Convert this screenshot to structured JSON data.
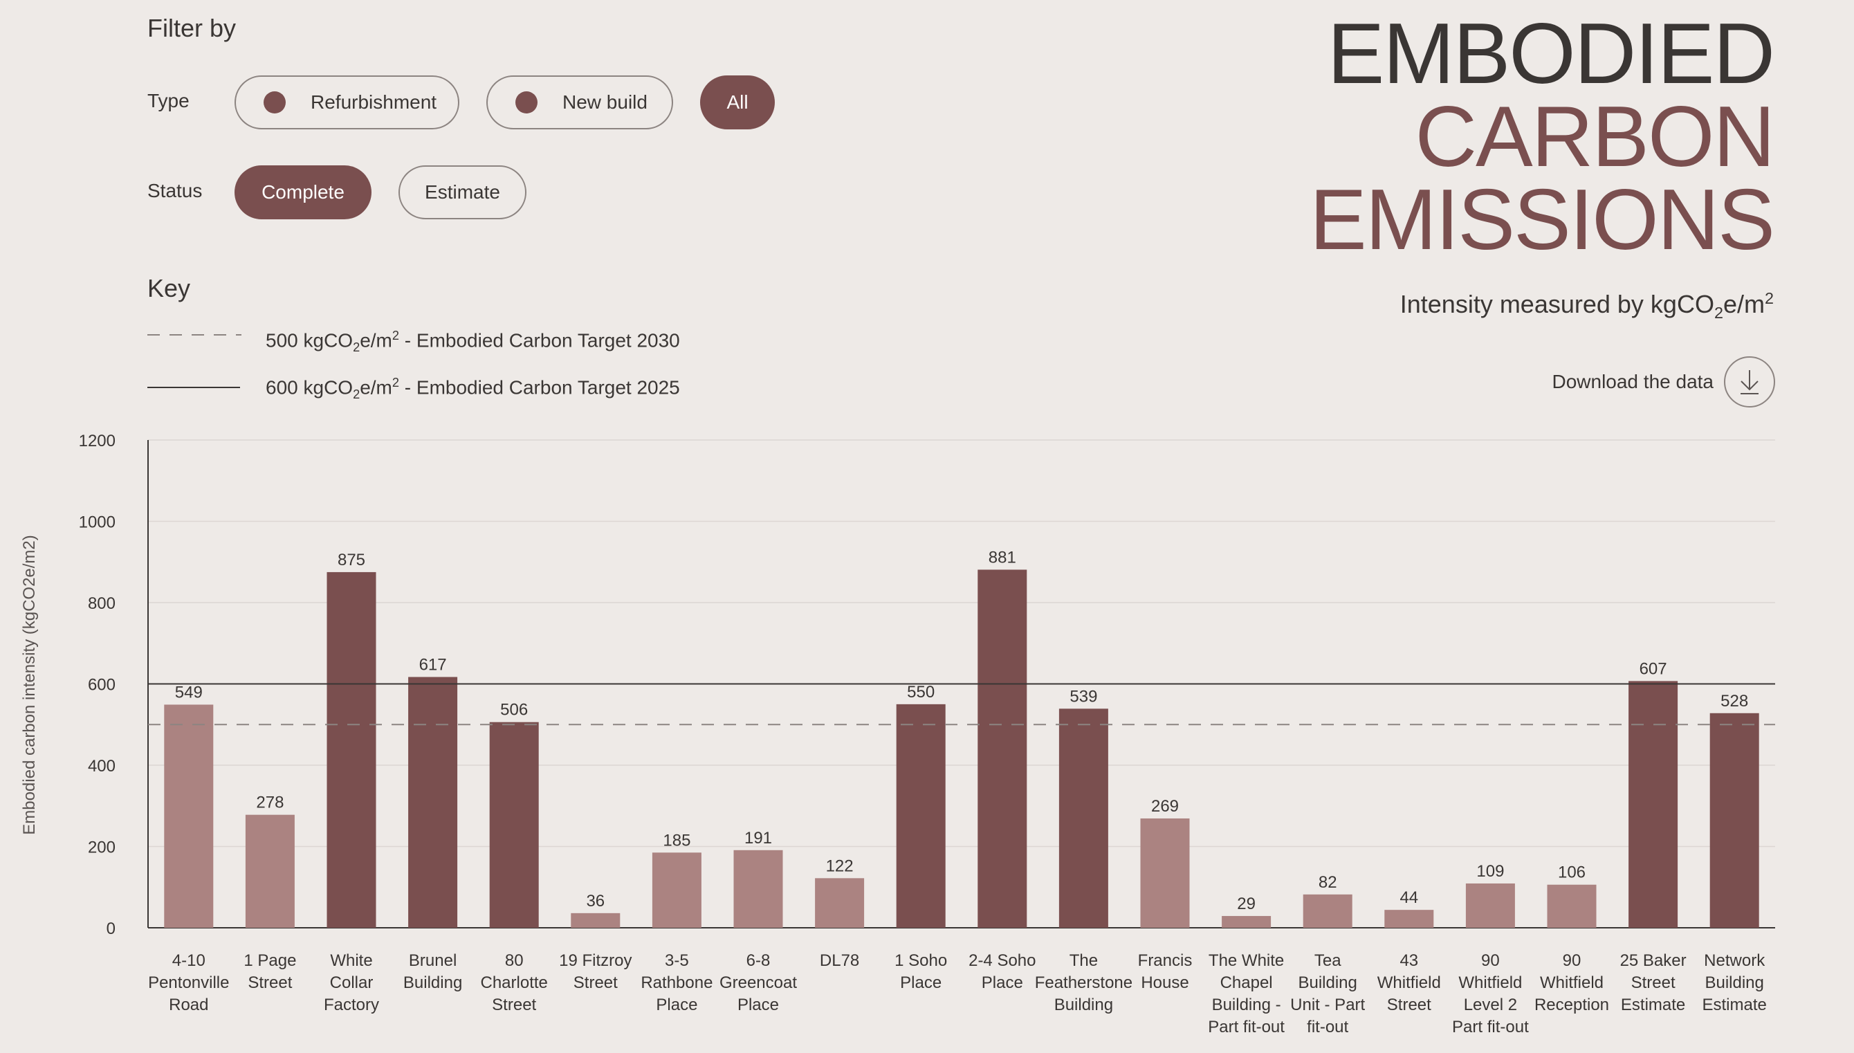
{
  "filters": {
    "heading": "Filter by",
    "type_label": "Type",
    "type_options": [
      {
        "label": "Refurbishment",
        "dot_color": "#7a4f4f"
      },
      {
        "label": "New build",
        "dot_color": "#7a4f4f"
      },
      {
        "label": "All",
        "active": true
      }
    ],
    "status_label": "Status",
    "status_options": [
      {
        "label": "Complete",
        "active": true
      },
      {
        "label": "Estimate"
      }
    ]
  },
  "title": {
    "line1": "EMBODIED",
    "line2": "CARBON",
    "line3": "EMISSIONS",
    "subtitle_prefix": "Intensity measured by kgCO",
    "subtitle_sub": "2",
    "subtitle_mid": "e/m",
    "subtitle_sup": "2"
  },
  "key": {
    "heading": "Key",
    "items": [
      {
        "style": "dashed",
        "pre": "500 kgCO",
        "sub": "2",
        "mid": "e/m",
        "sup": "2",
        "post": " - Embodied Carbon Target 2030"
      },
      {
        "style": "solid",
        "pre": "600 kgCO",
        "sub": "2",
        "mid": "e/m",
        "sup": "2",
        "post": " - Embodied Carbon Target 2025"
      }
    ]
  },
  "download": {
    "label": "Download the data",
    "icon": "download-icon"
  },
  "colors": {
    "new_build": "#7a4f4f",
    "refurbishment": "#ab8381",
    "accent": "#7a4f4f"
  },
  "chart_data": {
    "type": "bar",
    "ylabel": "Embodied carbon intensity (kgCO2e/m2)",
    "ylim": [
      0,
      1200
    ],
    "yticks": [
      0,
      200,
      400,
      600,
      800,
      1000,
      1200
    ],
    "grid": true,
    "reference_lines": [
      {
        "value": 500,
        "style": "dashed",
        "label": "Embodied Carbon Target 2030"
      },
      {
        "value": 600,
        "style": "solid",
        "label": "Embodied Carbon Target 2025"
      }
    ],
    "categories": [
      "4-10 Pentonville Road",
      "1 Page Street",
      "White Collar Factory",
      "Brunel Building",
      "80 Charlotte Street",
      "19 Fitzroy Street",
      "3-5 Rathbone Place",
      "6-8 Greencoat Place",
      "DL78",
      "1 Soho Place",
      "2-4 Soho Place",
      "The Featherstone Building",
      "Francis House",
      "The White Chapel Building - Part fit-out",
      "Tea Building Unit - Part fit-out",
      "43 Whitfield Street",
      "90 Whitfield Level 2 Part fit-out",
      "90 Whitfield Reception",
      "25 Baker Street Estimate",
      "Network Building Estimate"
    ],
    "category_lines": [
      [
        "4-10",
        "Pentonville",
        "Road"
      ],
      [
        "1 Page",
        "Street"
      ],
      [
        "White",
        "Collar",
        "Factory"
      ],
      [
        "Brunel",
        "Building"
      ],
      [
        "80",
        "Charlotte",
        "Street"
      ],
      [
        "19 Fitzroy",
        "Street"
      ],
      [
        "3-5",
        "Rathbone",
        "Place"
      ],
      [
        "6-8",
        "Greencoat",
        "Place"
      ],
      [
        "DL78"
      ],
      [
        "1 Soho",
        "Place"
      ],
      [
        "2-4 Soho",
        "Place"
      ],
      [
        "The",
        "Featherstone",
        "Building"
      ],
      [
        "Francis",
        "House"
      ],
      [
        "The White",
        "Chapel",
        "Building -",
        "Part fit-out"
      ],
      [
        "Tea",
        "Building",
        "Unit - Part",
        "fit-out"
      ],
      [
        "43",
        "Whitfield",
        "Street"
      ],
      [
        "90",
        "Whitfield",
        "Level 2",
        "Part fit-out"
      ],
      [
        "90",
        "Whitfield",
        "Reception"
      ],
      [
        "25 Baker",
        "Street",
        "Estimate"
      ],
      [
        "Network",
        "Building",
        "Estimate"
      ]
    ],
    "values": [
      549,
      278,
      875,
      617,
      506,
      36,
      185,
      191,
      122,
      550,
      881,
      539,
      269,
      29,
      82,
      44,
      109,
      106,
      607,
      528
    ],
    "building_type": [
      "refurbishment",
      "refurbishment",
      "new_build",
      "new_build",
      "new_build",
      "refurbishment",
      "refurbishment",
      "refurbishment",
      "refurbishment",
      "new_build",
      "new_build",
      "new_build",
      "refurbishment",
      "refurbishment",
      "refurbishment",
      "refurbishment",
      "refurbishment",
      "refurbishment",
      "new_build",
      "new_build"
    ]
  }
}
